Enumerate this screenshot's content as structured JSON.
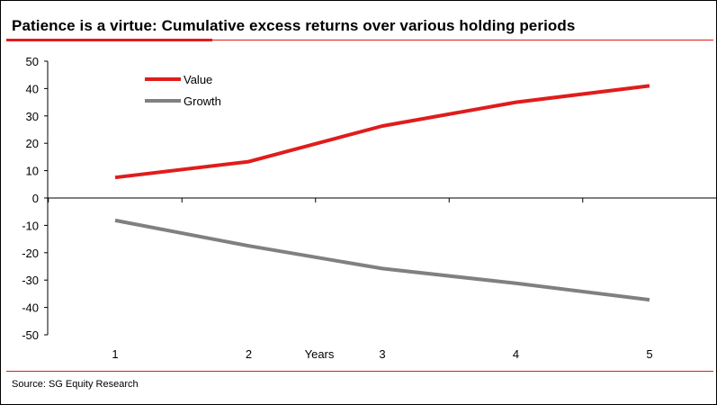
{
  "header": {
    "title": "Patience is a virtue: Cumulative excess returns over various holding periods"
  },
  "footer": {
    "source": "Source: SG Equity Research"
  },
  "colors": {
    "accent": "#e01c1c",
    "value": "#e01c1c",
    "growth": "#808080"
  },
  "chart_data": {
    "type": "line",
    "title": "Patience is a virtue: Cumulative excess returns over various holding periods",
    "xlabel": "Years",
    "ylabel": "",
    "categories": [
      "1",
      "2",
      "3",
      "4",
      "5"
    ],
    "x": [
      1,
      2,
      3,
      4,
      5
    ],
    "ylim": [
      -50,
      50
    ],
    "yticks": [
      50,
      40,
      30,
      20,
      10,
      0,
      -10,
      -20,
      -30,
      -40,
      -50
    ],
    "grid": false,
    "legend_position": "top-left",
    "series": [
      {
        "name": "Value",
        "color": "#e01c1c",
        "values": [
          7.5,
          13.3,
          26.3,
          35.0,
          41.0
        ]
      },
      {
        "name": "Growth",
        "color": "#808080",
        "values": [
          -8.2,
          -17.5,
          -25.8,
          -31.2,
          -37.2
        ]
      }
    ]
  }
}
